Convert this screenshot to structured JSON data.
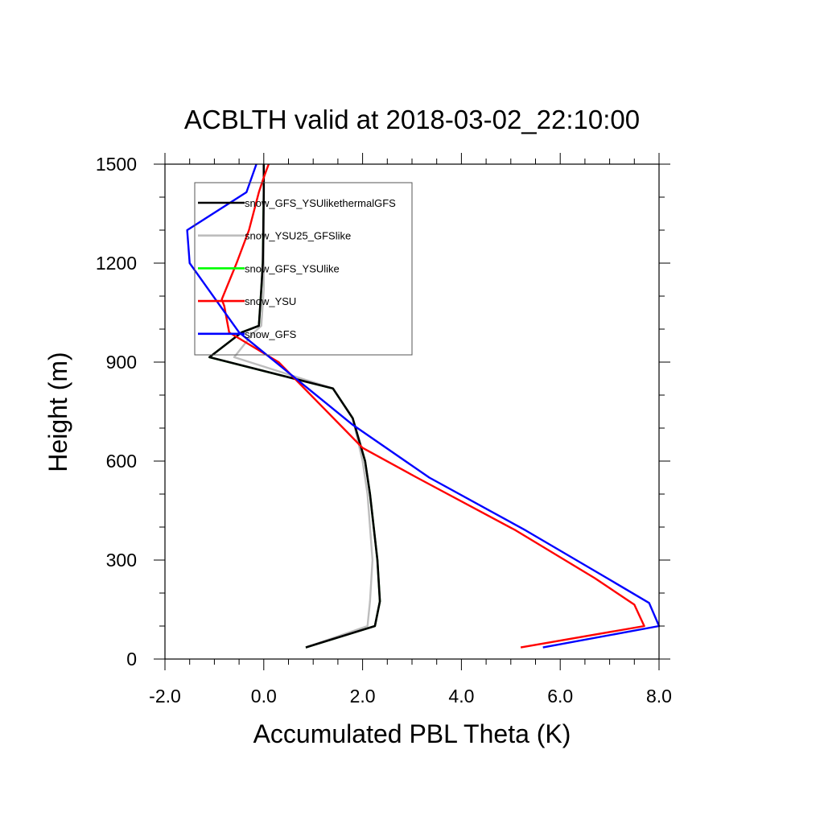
{
  "chart_data": {
    "type": "line",
    "title": "ACBLTH valid at 2018-03-02_22:10:00",
    "xlabel": "Accumulated PBL Theta (K)",
    "ylabel": "Height (m)",
    "xlim": [
      -2.0,
      8.0
    ],
    "ylim": [
      0,
      1500
    ],
    "x_ticks": [
      "-2.0",
      "0.0",
      "2.0",
      "4.0",
      "6.0",
      "8.0"
    ],
    "y_ticks": [
      "0",
      "300",
      "600",
      "900",
      "1200",
      "1500"
    ],
    "grid": false,
    "legend_position": "top-left",
    "series": [
      {
        "name": "snow_GFS_YSUlikethermalGFS",
        "color": "#000000",
        "x": [
          0.85,
          2.25,
          2.35,
          2.3,
          2.15,
          2.05,
          1.8,
          1.4,
          -1.1,
          -0.45,
          -0.1,
          -0.05,
          -0.02,
          -0.01,
          0.0,
          0.0
        ],
        "y": [
          35,
          100,
          175,
          300,
          500,
          600,
          730,
          820,
          915,
          990,
          1010,
          1120,
          1200,
          1300,
          1415,
          1500
        ]
      },
      {
        "name": "snow_YSU25_GFSlike",
        "color": "#bdbdbd",
        "x": [
          0.85,
          2.1,
          2.15,
          2.2,
          2.1,
          2.0,
          1.8,
          1.4,
          -0.6,
          -0.2,
          -0.05,
          0.0,
          0.0,
          0.0,
          0.0,
          0.0
        ],
        "y": [
          35,
          100,
          175,
          300,
          500,
          600,
          730,
          820,
          915,
          990,
          1010,
          1120,
          1200,
          1300,
          1415,
          1500
        ]
      },
      {
        "name": "snow_GFS_YSUlike",
        "color": "#00ff00",
        "x": [
          0.85,
          2.25,
          2.35,
          2.3,
          2.15,
          2.05,
          1.8,
          1.4,
          -1.1,
          -0.45,
          -0.1,
          -0.05,
          -0.02,
          -0.01,
          0.0,
          0.0
        ],
        "y": [
          35,
          100,
          175,
          300,
          500,
          600,
          730,
          820,
          915,
          990,
          1010,
          1120,
          1200,
          1300,
          1415,
          1500
        ]
      },
      {
        "name": "snow_YSU",
        "color": "#ff0000",
        "x": [
          5.2,
          7.7,
          7.5,
          6.7,
          5.1,
          3.1,
          2.0,
          0.3,
          -0.7,
          -0.8,
          -0.85,
          -0.55,
          -0.3,
          -0.1,
          0.0,
          0.1
        ],
        "y": [
          35,
          100,
          165,
          245,
          390,
          550,
          640,
          900,
          990,
          1070,
          1090,
          1200,
          1300,
          1415,
          1460,
          1500
        ]
      },
      {
        "name": "snow_GFS",
        "color": "#0000ff",
        "x": [
          5.65,
          8.0,
          7.8,
          6.95,
          5.3,
          3.35,
          1.8,
          -0.5,
          -1.5,
          -1.55,
          -0.35,
          -0.15
        ],
        "y": [
          35,
          100,
          170,
          245,
          390,
          550,
          710,
          990,
          1200,
          1300,
          1415,
          1500
        ]
      }
    ]
  }
}
